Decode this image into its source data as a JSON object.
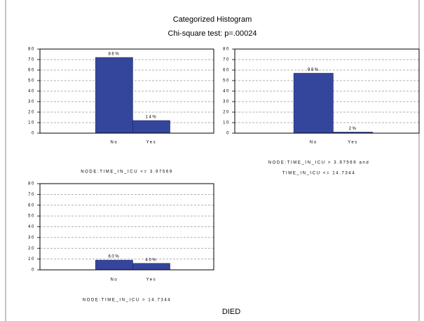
{
  "header": {
    "title": "Categorized Histogram",
    "subtitle": "Chi-square test: p=.00024"
  },
  "x_label": "DIED",
  "chart_data": [
    {
      "type": "bar",
      "title_lines": [
        "NODE:TIME_IN_ICU <= 3.97569"
      ],
      "categories": [
        "No",
        "Yes"
      ],
      "values": [
        72,
        12
      ],
      "value_labels": [
        "86%",
        "14%"
      ],
      "color": "#34469c",
      "ylim": [
        0,
        80
      ],
      "yticks": [
        0,
        10,
        20,
        30,
        40,
        50,
        60,
        70,
        80
      ],
      "grid": true
    },
    {
      "type": "bar",
      "title_lines": [
        "NODE:TIME_IN_ICU > 3.97569 and",
        "TIME_IN_ICU <= 14.7344"
      ],
      "categories": [
        "No",
        "Yes"
      ],
      "values": [
        57,
        1
      ],
      "value_labels": [
        "98%",
        "2%"
      ],
      "color": "#34469c",
      "ylim": [
        0,
        80
      ],
      "yticks": [
        0,
        10,
        20,
        30,
        40,
        50,
        60,
        70,
        80
      ],
      "grid": true
    },
    {
      "type": "bar",
      "title_lines": [
        "NODE:TIME_IN_ICU > 14.7344"
      ],
      "categories": [
        "No",
        "Yes"
      ],
      "values": [
        9,
        6
      ],
      "value_labels": [
        "60%",
        "40%"
      ],
      "color": "#34469c",
      "ylim": [
        0,
        80
      ],
      "yticks": [
        0,
        10,
        20,
        30,
        40,
        50,
        60,
        70,
        80
      ],
      "grid": true
    }
  ]
}
